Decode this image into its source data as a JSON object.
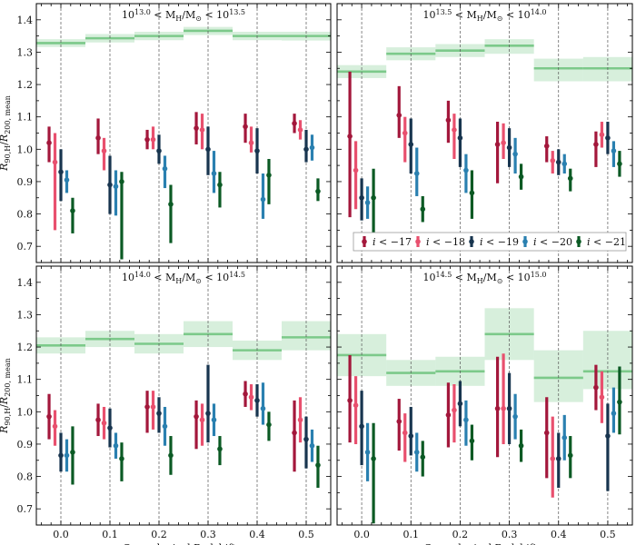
{
  "chart_data": {
    "type": "errorbar",
    "xlabel": "Cosmological Redshift z",
    "ylabel": "R_{90,H}/R_{200,mean}",
    "xlim": [
      -0.05,
      0.55
    ],
    "ylim": [
      0.65,
      1.45
    ],
    "xticks": [
      0.0,
      0.1,
      0.2,
      0.3,
      0.4,
      0.5
    ],
    "xtick_labels": [
      "0.0",
      "0.1",
      "0.2",
      "0.3",
      "0.4",
      "0.5"
    ],
    "yticks": [
      0.7,
      0.8,
      0.9,
      1.0,
      1.1,
      1.2,
      1.3,
      1.4
    ],
    "ytick_labels": [
      "0.7",
      "0.8",
      "0.9",
      "1.0",
      "1.1",
      "1.2",
      "1.3",
      "1.4"
    ],
    "redshifts": [
      0.0,
      0.1,
      0.2,
      0.3,
      0.4,
      0.5
    ],
    "series_style": [
      {
        "name": "i < -17",
        "color": "#a3173b",
        "offset": -0.024
      },
      {
        "name": "i < -18",
        "color": "#e8506e",
        "offset": -0.012
      },
      {
        "name": "i < -19",
        "color": "#18354f",
        "offset": 0.0
      },
      {
        "name": "i < -20",
        "color": "#2a80b0",
        "offset": 0.012
      },
      {
        "name": "i < -21",
        "color": "#0b5a24",
        "offset": 0.024
      }
    ],
    "legend": {
      "placement": "lower-right of top-right panel",
      "prefix": "i <",
      "labels": [
        "−17",
        "−18",
        "−19",
        "−20",
        "−21"
      ]
    },
    "band_color": "#7cc98a",
    "panels": [
      {
        "title_prefix": "10",
        "title_exp_low": "13.0",
        "title_mid": " < M",
        "title_sub": "H",
        "title_unit": "/M",
        "title_sun": "⊙",
        "title_lt": " < 10",
        "title_exp_high": "13.5",
        "halo_band": {
          "mean": [
            1.328,
            1.343,
            1.35,
            1.366,
            1.35,
            1.35
          ],
          "low": [
            1.316,
            1.33,
            1.337,
            1.353,
            1.337,
            1.336
          ],
          "high": [
            1.34,
            1.356,
            1.363,
            1.378,
            1.363,
            1.363
          ]
        },
        "series": [
          {
            "name": "i < -17",
            "values": [
              1.02,
              1.035,
              1.03,
              1.065,
              1.07,
              1.08
            ],
            "err_low": [
              0.06,
              0.05,
              0.03,
              0.05,
              0.05,
              0.03
            ],
            "err_high": [
              0.05,
              0.06,
              0.03,
              0.05,
              0.04,
              0.03
            ]
          },
          {
            "name": "i < -18",
            "values": [
              0.96,
              0.995,
              1.03,
              1.06,
              1.02,
              1.06
            ],
            "err_low": [
              0.21,
              0.06,
              0.03,
              0.06,
              0.03,
              0.03
            ],
            "err_high": [
              0.09,
              0.04,
              0.04,
              0.05,
              0.05,
              0.03
            ]
          },
          {
            "name": "i < -19",
            "values": [
              0.93,
              0.89,
              0.995,
              1.0,
              0.995,
              1.0
            ],
            "err_low": [
              0.09,
              0.09,
              0.04,
              0.08,
              0.07,
              0.04
            ],
            "err_high": [
              0.07,
              0.09,
              0.05,
              0.07,
              0.07,
              0.06
            ]
          },
          {
            "name": "i < -20",
            "values": [
              0.905,
              0.885,
              0.94,
              0.925,
              0.845,
              1.005
            ],
            "err_low": [
              0.04,
              0.09,
              0.06,
              0.06,
              0.06,
              0.04
            ],
            "err_high": [
              0.03,
              0.05,
              0.04,
              0.07,
              0.08,
              0.04
            ]
          },
          {
            "name": "i < -21",
            "values": [
              0.81,
              0.9,
              0.83,
              0.89,
              0.92,
              0.87
            ],
            "err_low": [
              0.07,
              0.24,
              0.12,
              0.07,
              0.09,
              0.03
            ],
            "err_high": [
              0.04,
              0.03,
              0.06,
              0.04,
              0.05,
              0.04
            ]
          }
        ]
      },
      {
        "title_prefix": "10",
        "title_exp_low": "13.5",
        "title_mid": " < M",
        "title_sub": "H",
        "title_unit": "/M",
        "title_sun": "⊙",
        "title_lt": " < 10",
        "title_exp_high": "14.0",
        "halo_band": {
          "mean": [
            1.24,
            1.295,
            1.305,
            1.32,
            1.25,
            1.25
          ],
          "low": [
            1.22,
            1.275,
            1.285,
            1.295,
            1.21,
            1.21
          ],
          "high": [
            1.26,
            1.315,
            1.325,
            1.34,
            1.28,
            1.285
          ]
        },
        "series": [
          {
            "name": "i < -17",
            "values": [
              1.04,
              1.105,
              1.09,
              1.015,
              1.01,
              1.015
            ],
            "err_low": [
              0.25,
              0.07,
              0.07,
              0.12,
              0.05,
              0.07
            ],
            "err_high": [
              0.2,
              0.09,
              0.06,
              0.07,
              0.03,
              0.04
            ]
          },
          {
            "name": "i < -18",
            "values": [
              0.935,
              1.05,
              1.06,
              1.02,
              0.965,
              1.045
            ],
            "err_low": [
              0.12,
              0.09,
              0.09,
              0.05,
              0.04,
              0.04
            ],
            "err_high": [
              0.09,
              0.05,
              0.05,
              0.06,
              0.03,
              0.04
            ]
          },
          {
            "name": "i < -19",
            "values": [
              0.85,
              1.015,
              1.035,
              1.005,
              0.96,
              1.035
            ],
            "err_low": [
              0.07,
              0.09,
              0.09,
              0.06,
              0.04,
              0.05
            ],
            "err_high": [
              0.06,
              0.08,
              0.06,
              0.06,
              0.04,
              0.05
            ]
          },
          {
            "name": "i < -20",
            "values": [
              0.835,
              0.925,
              0.935,
              0.985,
              0.955,
              0.995
            ],
            "err_low": [
              0.05,
              0.07,
              0.07,
              0.06,
              0.03,
              0.05
            ],
            "err_high": [
              0.05,
              0.08,
              0.05,
              0.05,
              0.03,
              0.03
            ]
          },
          {
            "name": "i < -21",
            "values": [
              0.85,
              0.815,
              0.865,
              0.915,
              0.91,
              0.955
            ],
            "err_low": [
              0.11,
              0.04,
              0.08,
              0.04,
              0.04,
              0.04
            ],
            "err_high": [
              0.09,
              0.04,
              0.07,
              0.04,
              0.03,
              0.04
            ]
          }
        ]
      },
      {
        "title_prefix": "10",
        "title_exp_low": "14.0",
        "title_mid": " < M",
        "title_sub": "H",
        "title_unit": "/M",
        "title_sun": "⊙",
        "title_lt": " < 10",
        "title_exp_high": "14.5",
        "halo_band": {
          "mean": [
            1.205,
            1.225,
            1.21,
            1.24,
            1.19,
            1.23
          ],
          "low": [
            1.18,
            1.2,
            1.18,
            1.2,
            1.16,
            1.19
          ],
          "high": [
            1.23,
            1.25,
            1.24,
            1.28,
            1.22,
            1.28
          ]
        },
        "series": [
          {
            "name": "i < -17",
            "values": [
              0.985,
              0.975,
              1.015,
              0.985,
              1.055,
              0.935
            ],
            "err_low": [
              0.07,
              0.05,
              0.08,
              0.1,
              0.04,
              0.12
            ],
            "err_high": [
              0.07,
              0.05,
              0.05,
              0.05,
              0.04,
              0.1
            ]
          },
          {
            "name": "i < -18",
            "values": [
              0.955,
              0.965,
              1.015,
              0.975,
              1.045,
              0.975
            ],
            "err_low": [
              0.06,
              0.05,
              0.07,
              0.08,
              0.04,
              0.07
            ],
            "err_high": [
              0.05,
              0.05,
              0.05,
              0.05,
              0.04,
              0.07
            ]
          },
          {
            "name": "i < -19",
            "values": [
              0.865,
              0.95,
              0.995,
              0.995,
              1.035,
              0.915
            ],
            "err_low": [
              0.05,
              0.06,
              0.06,
              0.09,
              0.05,
              0.09
            ],
            "err_high": [
              0.07,
              0.06,
              0.05,
              0.15,
              0.05,
              0.07
            ]
          },
          {
            "name": "i < -20",
            "values": [
              0.865,
              0.895,
              0.955,
              0.975,
              1.01,
              0.895
            ],
            "err_low": [
              0.05,
              0.04,
              0.06,
              0.05,
              0.05,
              0.05
            ],
            "err_high": [
              0.05,
              0.04,
              0.06,
              0.05,
              0.08,
              0.05
            ]
          },
          {
            "name": "i < -21",
            "values": [
              0.875,
              0.855,
              0.865,
              0.885,
              0.96,
              0.835
            ],
            "err_low": [
              0.1,
              0.07,
              0.06,
              0.05,
              0.05,
              0.07
            ],
            "err_high": [
              0.08,
              0.05,
              0.06,
              0.04,
              0.04,
              0.06
            ]
          }
        ]
      },
      {
        "title_prefix": "10",
        "title_exp_low": "14.5",
        "title_mid": " < M",
        "title_sub": "H",
        "title_unit": "/M",
        "title_sun": "⊙",
        "title_lt": " < 10",
        "title_exp_high": "15.0",
        "halo_band": {
          "mean": [
            1.175,
            1.12,
            1.125,
            1.24,
            1.105,
            1.125
          ],
          "low": [
            1.11,
            1.08,
            1.08,
            1.16,
            1.03,
            1.07
          ],
          "high": [
            1.24,
            1.16,
            1.17,
            1.32,
            1.19,
            1.25
          ]
        },
        "series": [
          {
            "name": "i < -17",
            "values": [
              1.035,
              0.97,
              0.99,
              1.01,
              0.935,
              1.075
            ],
            "err_low": [
              0.13,
              0.09,
              0.1,
              0.15,
              0.14,
              0.07
            ],
            "err_high": [
              0.14,
              0.07,
              0.1,
              0.16,
              0.11,
              0.07
            ]
          },
          {
            "name": "i < -18",
            "values": [
              1.02,
              0.935,
              1.005,
              1.01,
              0.855,
              1.045
            ],
            "err_low": [
              0.12,
              0.09,
              0.1,
              0.11,
              0.12,
              0.08
            ],
            "err_high": [
              0.09,
              0.06,
              0.08,
              0.17,
              0.13,
              0.08
            ]
          },
          {
            "name": "i < -19",
            "values": [
              0.955,
              0.925,
              1.025,
              1.01,
              0.855,
              0.925
            ],
            "err_low": [
              0.12,
              0.06,
              0.07,
              0.11,
              0.09,
              0.17
            ],
            "err_high": [
              0.11,
              0.09,
              0.07,
              0.11,
              0.08,
              0.1
            ]
          },
          {
            "name": "i < -20",
            "values": [
              0.875,
              0.875,
              0.975,
              0.985,
              0.92,
              0.995
            ],
            "err_low": [
              0.09,
              0.06,
              0.08,
              0.07,
              0.07,
              0.06
            ],
            "err_high": [
              0.09,
              0.06,
              0.06,
              0.07,
              0.07,
              0.08
            ]
          },
          {
            "name": "i < -21",
            "values": [
              0.855,
              0.86,
              0.91,
              0.895,
              0.865,
              1.03
            ],
            "err_low": [
              0.2,
              0.06,
              0.06,
              0.05,
              0.07,
              0.1
            ],
            "err_high": [
              0.11,
              0.05,
              0.05,
              0.05,
              0.06,
              0.11
            ]
          }
        ]
      }
    ]
  }
}
